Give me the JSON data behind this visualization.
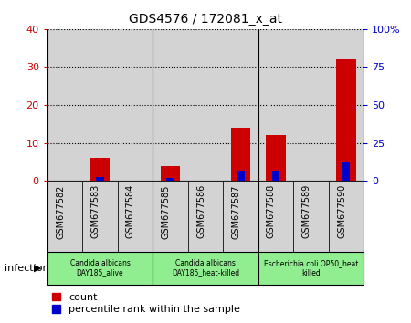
{
  "title": "GDS4576 / 172081_x_at",
  "samples": [
    "GSM677582",
    "GSM677583",
    "GSM677584",
    "GSM677585",
    "GSM677586",
    "GSM677587",
    "GSM677588",
    "GSM677589",
    "GSM677590"
  ],
  "count_values": [
    0,
    6,
    0,
    4,
    0,
    14,
    12,
    0,
    32
  ],
  "percentile_values": [
    0,
    2.5,
    0,
    2.0,
    0,
    6.5,
    7.0,
    0,
    13.0
  ],
  "count_color": "#cc0000",
  "percentile_color": "#0000cc",
  "ylim_left": [
    0,
    40
  ],
  "ylim_right": [
    0,
    100
  ],
  "yticks_left": [
    0,
    10,
    20,
    30,
    40
  ],
  "yticks_right": [
    0,
    25,
    50,
    75,
    100
  ],
  "ytick_labels_right": [
    "0",
    "25",
    "50",
    "75",
    "100%"
  ],
  "groups": [
    {
      "label": "Candida albicans\nDAY185_alive",
      "start": 0,
      "end": 3,
      "color": "#90ee90"
    },
    {
      "label": "Candida albicans\nDAY185_heat-killed",
      "start": 3,
      "end": 6,
      "color": "#90ee90"
    },
    {
      "label": "Escherichia coli OP50_heat\nkilled",
      "start": 6,
      "end": 9,
      "color": "#90ee90"
    }
  ],
  "group_label": "infection",
  "bar_bg_color": "#d3d3d3",
  "bar_width": 0.55,
  "legend_count_label": "count",
  "legend_percentile_label": "percentile rank within the sample",
  "background_color": "#ffffff",
  "left_axis_color": "#cc0000",
  "right_axis_color": "#0000cc"
}
